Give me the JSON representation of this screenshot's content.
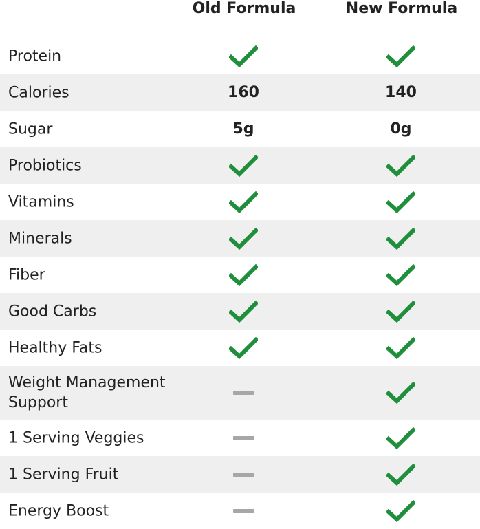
{
  "header": {
    "old_formula": "Old Formula",
    "new_formula": "New Formula"
  },
  "colors": {
    "check": "#1f8f3c",
    "dash": "#a7a7a7",
    "shade": "#efefef"
  },
  "rows": [
    {
      "label": "Protein",
      "old": {
        "type": "check"
      },
      "new": {
        "type": "check"
      }
    },
    {
      "label": "Calories",
      "old": {
        "type": "text",
        "value": "160"
      },
      "new": {
        "type": "text",
        "value": "140"
      }
    },
    {
      "label": "Sugar",
      "old": {
        "type": "text",
        "value": "5g"
      },
      "new": {
        "type": "text",
        "value": "0g"
      }
    },
    {
      "label": "Probiotics",
      "old": {
        "type": "check"
      },
      "new": {
        "type": "check"
      }
    },
    {
      "label": "Vitamins",
      "old": {
        "type": "check"
      },
      "new": {
        "type": "check"
      }
    },
    {
      "label": "Minerals",
      "old": {
        "type": "check"
      },
      "new": {
        "type": "check"
      }
    },
    {
      "label": "Fiber",
      "old": {
        "type": "check"
      },
      "new": {
        "type": "check"
      }
    },
    {
      "label": "Good Carbs",
      "old": {
        "type": "check"
      },
      "new": {
        "type": "check"
      }
    },
    {
      "label": "Healthy Fats",
      "old": {
        "type": "check"
      },
      "new": {
        "type": "check"
      }
    },
    {
      "label": "Weight Management Support",
      "old": {
        "type": "dash"
      },
      "new": {
        "type": "check"
      }
    },
    {
      "label": "1 Serving Veggies",
      "old": {
        "type": "dash"
      },
      "new": {
        "type": "check"
      }
    },
    {
      "label": "1 Serving Fruit",
      "old": {
        "type": "dash"
      },
      "new": {
        "type": "check"
      }
    },
    {
      "label": "Energy Boost",
      "old": {
        "type": "dash"
      },
      "new": {
        "type": "check"
      }
    }
  ]
}
